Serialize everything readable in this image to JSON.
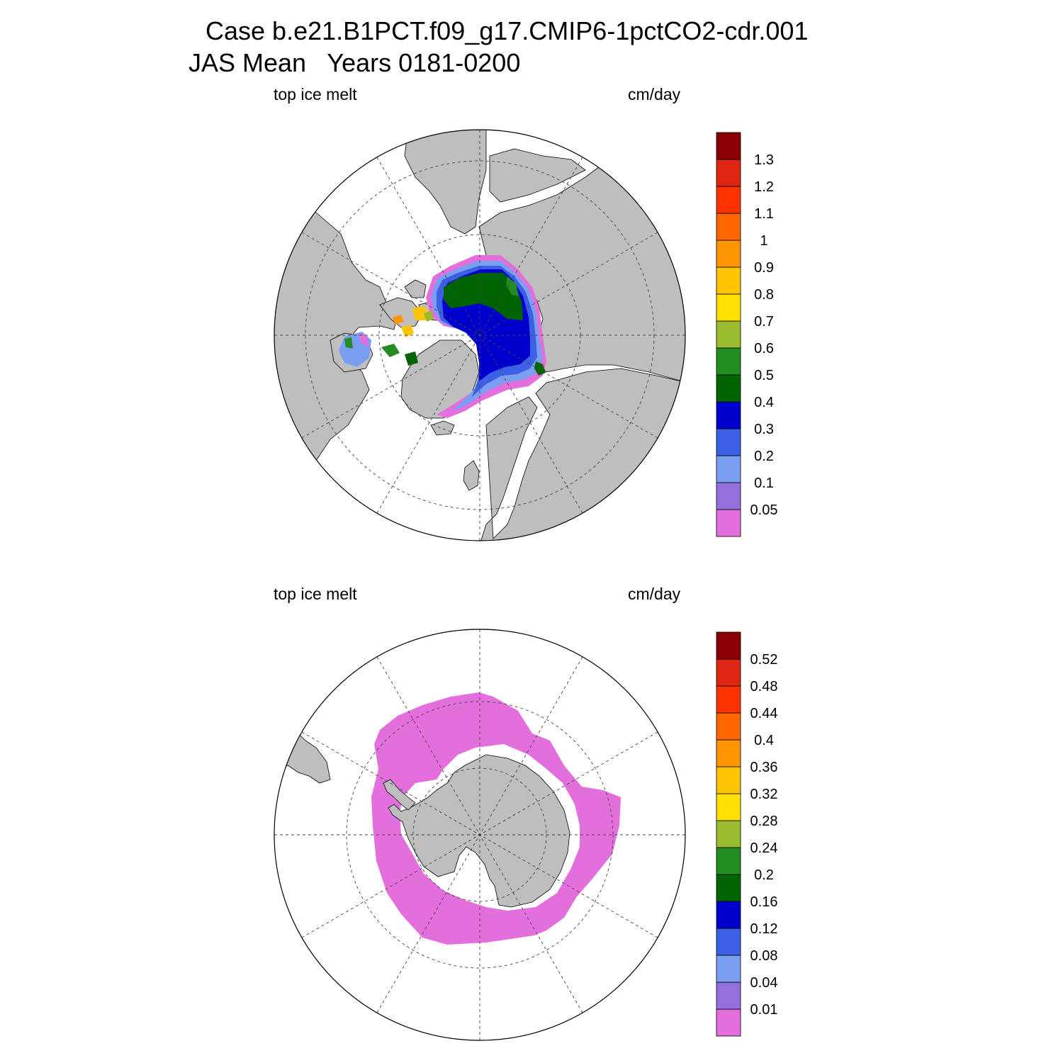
{
  "title_line1": "Case b.e21.B1PCT.f09_g17.CMIP6-1pctCO2-cdr.001",
  "title_line2": "JAS Mean   Years 0181-0200",
  "panels": [
    {
      "left_label": "top ice melt",
      "right_label": "cm/day",
      "hemisphere": "north",
      "colorbar": {
        "levels": [
          "0.05",
          "0.1",
          "0.2",
          "0.3",
          "0.4",
          "0.5",
          "0.6",
          "0.7",
          "0.8",
          "0.9",
          "1",
          "1.1",
          "1.2",
          "1.3"
        ],
        "colors": [
          "#e36fdc",
          "#9370db",
          "#7b9ef2",
          "#3b60e4",
          "#0000cd",
          "#006400",
          "#228b22",
          "#9aba30",
          "#ffe000",
          "#ffc400",
          "#ff9600",
          "#ff6600",
          "#ff3300",
          "#df2612",
          "#8b0000"
        ]
      }
    },
    {
      "left_label": "top ice melt",
      "right_label": "cm/day",
      "hemisphere": "south",
      "colorbar": {
        "levels": [
          "0.01",
          "0.04",
          "0.08",
          "0.12",
          "0.16",
          "0.2",
          "0.24",
          "0.28",
          "0.32",
          "0.36",
          "0.4",
          "0.44",
          "0.48",
          "0.52"
        ],
        "colors": [
          "#e36fdc",
          "#9370db",
          "#7b9ef2",
          "#3b60e4",
          "#0000cd",
          "#006400",
          "#228b22",
          "#9aba30",
          "#ffe000",
          "#ffc400",
          "#ff9600",
          "#ff6600",
          "#ff3300",
          "#df2612",
          "#8b0000"
        ]
      }
    }
  ]
}
